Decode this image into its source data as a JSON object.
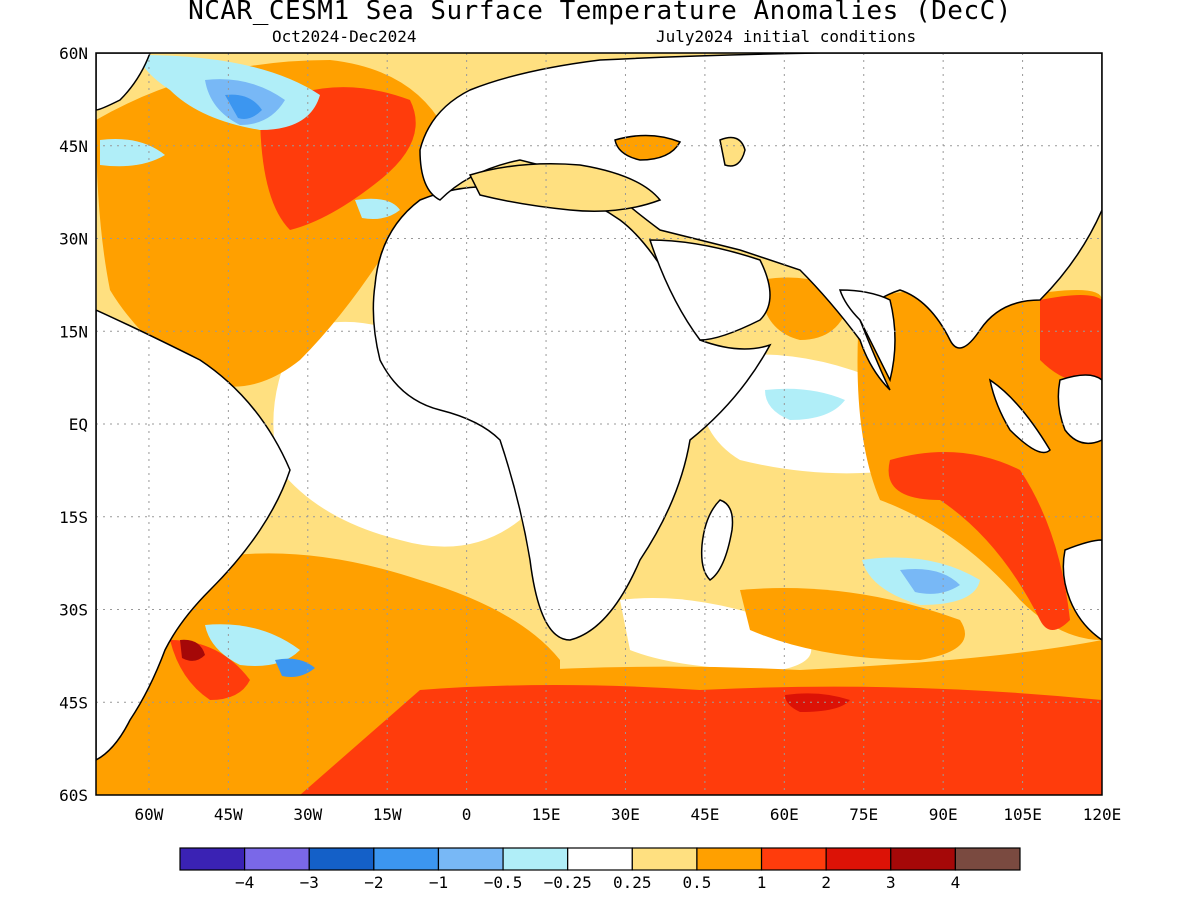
{
  "title": "NCAR_CESM1 Sea Surface Temperature Anomalies (DecC)",
  "subtitle_left": "Oct2024-Dec2024",
  "subtitle_right": "July2024 initial conditions",
  "map": {
    "lon_ticks": [
      "60W",
      "45W",
      "30W",
      "15W",
      "0",
      "15E",
      "30E",
      "45E",
      "60E",
      "75E",
      "90E",
      "105E",
      "120E"
    ],
    "lat_ticks": [
      "60N",
      "45N",
      "30N",
      "15N",
      "EQ",
      "15S",
      "30S",
      "45S",
      "60S"
    ],
    "extent": {
      "lon": [
        -70,
        120
      ],
      "lat": [
        -60,
        60
      ]
    }
  },
  "colorbar": {
    "colors": [
      "#3a22b4",
      "#7a68e8",
      "#1460c8",
      "#3c96f0",
      "#78b8f6",
      "#b0eef8",
      "#ffffff",
      "#ffe080",
      "#ffa000",
      "#ff3c0c",
      "#dc1206",
      "#a50808",
      "#7a4a40"
    ],
    "labels": [
      "-4",
      "-3",
      "-2",
      "-1",
      "-0.5",
      "-0.25",
      "0.25",
      "0.5",
      "1",
      "2",
      "3",
      "4"
    ]
  },
  "legend_colors": {
    "ocean_neutral": "#ffffff",
    "weak_warm": "#ffe080",
    "moderate_warm": "#ffa000",
    "strong_warm": "#ff3c0c",
    "weak_cool": "#b0eef8",
    "moderate_cool": "#78b8f6",
    "strong_cool": "#3c96f0"
  }
}
